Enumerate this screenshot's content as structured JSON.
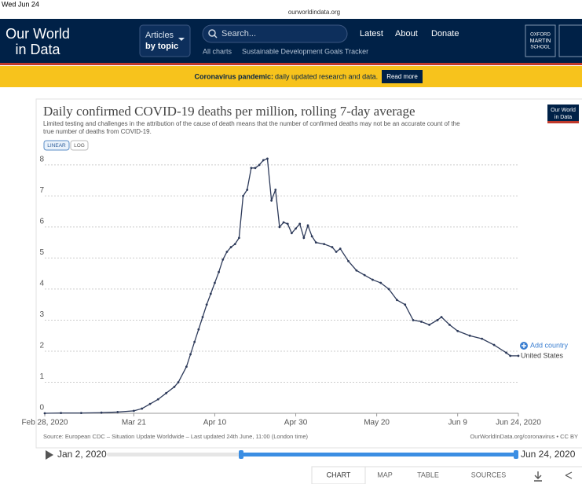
{
  "status_bar": {
    "time": "Wed Jun 24",
    "url": "ourworldindata.org"
  },
  "header": {
    "logo_line1": "Our World",
    "logo_line2": "in Data",
    "articles_line1": "Articles",
    "articles_line2": "by topic",
    "search": "Search...",
    "links": [
      "Latest",
      "About",
      "Donate"
    ],
    "sublinks": [
      "All charts",
      "Sustainable Development Goals Tracker"
    ],
    "partner": [
      "OXFORD",
      "MARTIN",
      "SCHOOL"
    ]
  },
  "banner": {
    "bold": "Coronavirus pandemic:",
    "text": "daily updated research and data.",
    "button": "Read more"
  },
  "card_logo": [
    "Our World",
    "in Data"
  ],
  "scale_buttons": [
    "LINEAR",
    "LOG"
  ],
  "add_country": "Add country",
  "chart_data": {
    "type": "line",
    "title": "Daily confirmed COVID-19 deaths per million, rolling 7-day average",
    "subtitle_lines": [
      "Limited testing and challenges in the attribution of the cause of death means that the number of confirmed deaths may not be an accurate count of the",
      "true number of deaths from COVID-19."
    ],
    "x": [
      "2020-02-28",
      "2020-03-03",
      "2020-03-08",
      "2020-03-13",
      "2020-03-17",
      "2020-03-21",
      "2020-03-23",
      "2020-03-25",
      "2020-03-27",
      "2020-03-29",
      "2020-03-31",
      "2020-04-01",
      "2020-04-03",
      "2020-04-04",
      "2020-04-05",
      "2020-04-06",
      "2020-04-07",
      "2020-04-08",
      "2020-04-09",
      "2020-04-10",
      "2020-04-11",
      "2020-04-12",
      "2020-04-13",
      "2020-04-14",
      "2020-04-15",
      "2020-04-16",
      "2020-04-17",
      "2020-04-18",
      "2020-04-19",
      "2020-04-20",
      "2020-04-21",
      "2020-04-22",
      "2020-04-23",
      "2020-04-24",
      "2020-04-25",
      "2020-04-26",
      "2020-04-27",
      "2020-04-28",
      "2020-04-29",
      "2020-04-30",
      "2020-05-01",
      "2020-05-02",
      "2020-05-03",
      "2020-05-04",
      "2020-05-05",
      "2020-05-07",
      "2020-05-09",
      "2020-05-10",
      "2020-05-11",
      "2020-05-13",
      "2020-05-15",
      "2020-05-17",
      "2020-05-19",
      "2020-05-21",
      "2020-05-23",
      "2020-05-25",
      "2020-05-27",
      "2020-05-29",
      "2020-05-31",
      "2020-06-02",
      "2020-06-04",
      "2020-06-05",
      "2020-06-07",
      "2020-06-09",
      "2020-06-12",
      "2020-06-15",
      "2020-06-18",
      "2020-06-21",
      "2020-06-22",
      "2020-06-24"
    ],
    "series": [
      {
        "name": "United States",
        "color": "#2d3a5a",
        "values": [
          0,
          0.01,
          0.01,
          0.02,
          0.04,
          0.08,
          0.15,
          0.3,
          0.45,
          0.65,
          0.85,
          1.0,
          1.5,
          1.9,
          2.3,
          2.7,
          3.1,
          3.5,
          3.85,
          4.2,
          4.55,
          4.95,
          5.2,
          5.35,
          5.45,
          5.65,
          7.0,
          7.2,
          7.9,
          7.9,
          8.0,
          8.15,
          8.2,
          6.85,
          7.2,
          6.0,
          6.15,
          6.1,
          5.8,
          5.95,
          6.1,
          5.65,
          6.05,
          5.7,
          5.5,
          5.45,
          5.35,
          5.2,
          5.3,
          4.9,
          4.6,
          4.45,
          4.3,
          4.2,
          4.0,
          3.65,
          3.5,
          3.0,
          2.95,
          2.85,
          3.0,
          3.1,
          2.85,
          2.65,
          2.5,
          2.4,
          2.2,
          1.95,
          1.85,
          1.85
        ]
      }
    ],
    "xlim": [
      "2020-02-28",
      "2020-06-24"
    ],
    "xticks": [
      {
        "value": "2020-02-28",
        "label": "Feb 28, 2020"
      },
      {
        "value": "2020-03-21",
        "label": "Mar 21"
      },
      {
        "value": "2020-04-10",
        "label": "Apr 10"
      },
      {
        "value": "2020-04-30",
        "label": "Apr 30"
      },
      {
        "value": "2020-05-20",
        "label": "May 20"
      },
      {
        "value": "2020-06-09",
        "label": "Jun 9"
      },
      {
        "value": "2020-06-24",
        "label": "Jun 24, 2020"
      }
    ],
    "ylim": [
      0,
      8.3
    ],
    "yticks": [
      0,
      1,
      2,
      3,
      4,
      5,
      6,
      7,
      8
    ],
    "grid": true,
    "source": "Source: European CDC – Situation Update Worldwide – Last updated 24th June, 11:00 (London time)",
    "credit": "OurWorldInData.org/coronavirus • CC BY"
  },
  "timeline": {
    "start": "Jan 2, 2020",
    "end": "Jun 24, 2020"
  },
  "tabs": [
    "CHART",
    "MAP",
    "TABLE",
    "SOURCES"
  ]
}
